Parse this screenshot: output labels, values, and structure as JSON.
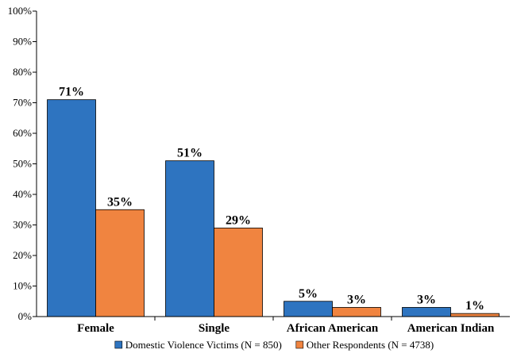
{
  "chart_data": {
    "type": "bar",
    "categories": [
      "Female",
      "Single",
      "African American",
      "American Indian"
    ],
    "series": [
      {
        "name": "Domestic Violence Victims (N = 850)",
        "values": [
          71,
          51,
          5,
          3
        ],
        "labels": [
          "71%",
          "51%",
          "5%",
          "3%"
        ],
        "color": "#2e74c0"
      },
      {
        "name": "Other Respondents (N = 4738)",
        "values": [
          35,
          29,
          3,
          1
        ],
        "labels": [
          "35%",
          "29%",
          "3%",
          "1%"
        ],
        "color": "#f08440"
      }
    ],
    "ylim": [
      0,
      100
    ],
    "yticks": [
      0,
      10,
      20,
      30,
      40,
      50,
      60,
      70,
      80,
      90,
      100
    ],
    "ytick_labels": [
      "0%",
      "10%",
      "20%",
      "30%",
      "40%",
      "50%",
      "60%",
      "70%",
      "80%",
      "90%",
      "100%"
    ],
    "title": "",
    "xlabel": "",
    "ylabel": "",
    "grid": false,
    "legend_position": "bottom-center"
  }
}
